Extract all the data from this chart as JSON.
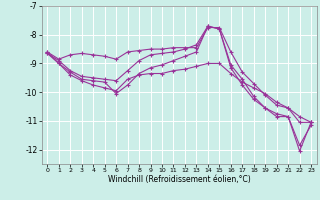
{
  "xlabel": "Windchill (Refroidissement éolien,°C)",
  "bg_color": "#cceee8",
  "line_color": "#993399",
  "grid_color": "#ffffff",
  "ylim": [
    -12.5,
    -7.0
  ],
  "xlim": [
    -0.5,
    23.5
  ],
  "yticks": [
    -12,
    -11,
    -10,
    -9,
    -8,
    -7
  ],
  "xticks": [
    0,
    1,
    2,
    3,
    4,
    5,
    6,
    7,
    8,
    9,
    10,
    11,
    12,
    13,
    14,
    15,
    16,
    17,
    18,
    19,
    20,
    21,
    22,
    23
  ],
  "line1_x": [
    0,
    1,
    2,
    3,
    4,
    5,
    6,
    7,
    8,
    9,
    10,
    11,
    12,
    13,
    14,
    15,
    16,
    17,
    18,
    19,
    20,
    21,
    22,
    23
  ],
  "line1_y": [
    -8.6,
    -8.85,
    -8.7,
    -8.65,
    -8.7,
    -8.75,
    -8.85,
    -8.6,
    -8.55,
    -8.5,
    -8.5,
    -8.45,
    -8.45,
    -8.45,
    -7.75,
    -7.75,
    -8.6,
    -9.3,
    -9.7,
    -10.1,
    -10.45,
    -10.55,
    -11.05,
    -11.05
  ],
  "line2_x": [
    0,
    1,
    2,
    3,
    4,
    5,
    6,
    7,
    8,
    9,
    10,
    11,
    12,
    13,
    14,
    15,
    16,
    17,
    18,
    19,
    20,
    21,
    22,
    23
  ],
  "line2_y": [
    -8.65,
    -8.9,
    -9.25,
    -9.45,
    -9.5,
    -9.55,
    -9.6,
    -9.25,
    -8.9,
    -8.7,
    -8.65,
    -8.6,
    -8.5,
    -8.35,
    -7.7,
    -7.8,
    -9.15,
    -9.75,
    -10.25,
    -10.55,
    -10.75,
    -10.85,
    -12.05,
    -11.05
  ],
  "line3_x": [
    0,
    1,
    2,
    3,
    4,
    5,
    6,
    7,
    8,
    9,
    10,
    11,
    12,
    13,
    14,
    15,
    16,
    17,
    18,
    19,
    20,
    21,
    22,
    23
  ],
  "line3_y": [
    -8.65,
    -9.0,
    -9.3,
    -9.55,
    -9.6,
    -9.65,
    -10.05,
    -9.75,
    -9.35,
    -9.15,
    -9.05,
    -8.9,
    -8.75,
    -8.6,
    -7.7,
    -7.8,
    -9.05,
    -9.55,
    -10.15,
    -10.55,
    -10.85,
    -10.85,
    -11.85,
    -11.15
  ],
  "line4_x": [
    0,
    1,
    2,
    3,
    4,
    5,
    6,
    7,
    8,
    9,
    10,
    11,
    12,
    13,
    14,
    15,
    16,
    17,
    18,
    19,
    20,
    21,
    22,
    23
  ],
  "line4_y": [
    -8.6,
    -9.0,
    -9.4,
    -9.6,
    -9.75,
    -9.85,
    -9.95,
    -9.55,
    -9.4,
    -9.35,
    -9.35,
    -9.25,
    -9.2,
    -9.1,
    -9.0,
    -9.0,
    -9.35,
    -9.65,
    -9.85,
    -10.05,
    -10.35,
    -10.55,
    -10.85,
    -11.05
  ]
}
